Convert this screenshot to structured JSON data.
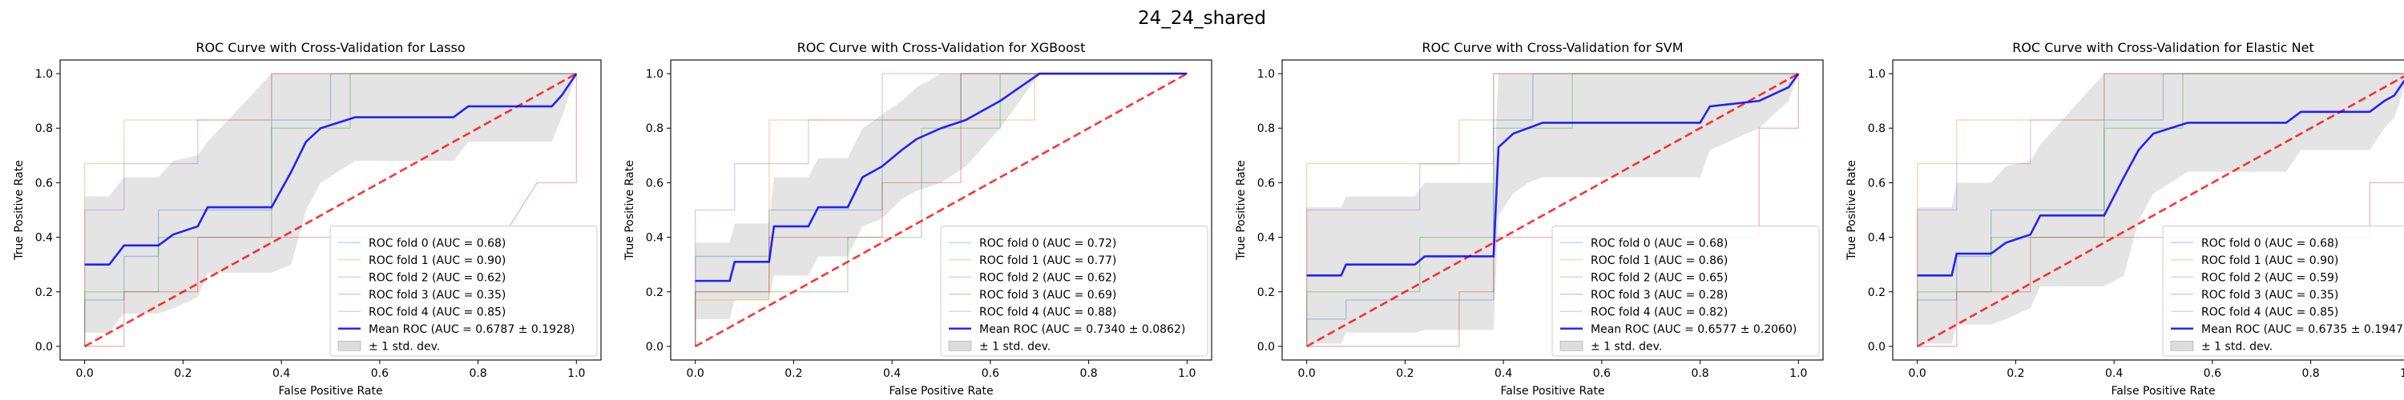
{
  "suptitle": "24_24_shared",
  "chart_data": [
    {
      "type": "line",
      "title": "ROC Curve with Cross-Validation for Lasso",
      "xlabel": "False Positive Rate",
      "ylabel": "True Positive Rate",
      "xlim": [
        -0.05,
        1.05
      ],
      "ylim": [
        -0.05,
        1.05
      ],
      "ticks": [
        "0.0",
        "0.2",
        "0.4",
        "0.6",
        "0.8",
        "1.0"
      ],
      "legend_position": "lower-right",
      "folds": [
        {
          "name": "ROC fold 0 (AUC = 0.68)",
          "color": "#1f77b4",
          "x": [
            0,
            0,
            0.08,
            0.08,
            0.15,
            0.15,
            0.31,
            0.31,
            0.38,
            0.38,
            0.5,
            0.5,
            1
          ],
          "y": [
            0,
            0.17,
            0.17,
            0.33,
            0.33,
            0.5,
            0.5,
            0.5,
            0.5,
            0.83,
            0.83,
            1,
            1
          ]
        },
        {
          "name": "ROC fold 1 (AUC = 0.90)",
          "color": "#ff7f0e",
          "x": [
            0,
            0,
            0.08,
            0.08,
            0.15,
            0.15,
            0.38,
            0.38,
            1
          ],
          "y": [
            0,
            0.67,
            0.67,
            0.83,
            0.83,
            0.83,
            0.83,
            1,
            1
          ]
        },
        {
          "name": "ROC fold 2 (AUC = 0.62)",
          "color": "#2ca02c",
          "x": [
            0,
            0,
            0.15,
            0.15,
            0.38,
            0.38,
            0.54,
            0.54,
            1
          ],
          "y": [
            0,
            0.2,
            0.2,
            0.4,
            0.4,
            0.8,
            0.8,
            1,
            1
          ]
        },
        {
          "name": "ROC fold 3 (AUC = 0.35)",
          "color": "#d62728",
          "x": [
            0,
            0.08,
            0.08,
            0.23,
            0.23,
            0.38,
            0.38,
            0.85,
            0.85,
            0.92,
            0.92,
            1,
            1
          ],
          "y": [
            0,
            0,
            0.2,
            0.2,
            0.4,
            0.4,
            0.4,
            0.4,
            0.4,
            0.6,
            0.6,
            0.6,
            1
          ]
        },
        {
          "name": "ROC fold 4 (AUC = 0.85)",
          "color": "#9467bd",
          "x": [
            0,
            0,
            0.08,
            0.08,
            0.23,
            0.23,
            0.38,
            0.38,
            1
          ],
          "y": [
            0,
            0.5,
            0.5,
            0.67,
            0.67,
            0.83,
            0.83,
            1,
            1
          ]
        }
      ],
      "mean": {
        "name": "Mean ROC (AUC = 0.6787 ± 0.1928)",
        "color": "#0000ff",
        "x": [
          0,
          0.05,
          0.08,
          0.15,
          0.18,
          0.23,
          0.25,
          0.38,
          0.42,
          0.45,
          0.48,
          0.55,
          0.75,
          0.78,
          0.95,
          0.97,
          1.0
        ],
        "y": [
          0.3,
          0.3,
          0.37,
          0.37,
          0.41,
          0.44,
          0.51,
          0.51,
          0.64,
          0.75,
          0.8,
          0.84,
          0.84,
          0.88,
          0.88,
          0.92,
          1.0
        ]
      },
      "std_band": {
        "name": "± 1 std. dev.",
        "color": "#bbbbbb",
        "x": [
          0,
          0.05,
          0.08,
          0.15,
          0.18,
          0.23,
          0.25,
          0.38,
          0.42,
          0.45,
          0.48,
          0.55,
          0.75,
          0.78,
          0.95,
          0.97,
          1.0
        ],
        "upper": [
          0.55,
          0.55,
          0.62,
          0.62,
          0.68,
          0.7,
          0.75,
          1.0,
          1.0,
          1.0,
          1.0,
          1.0,
          1.0,
          1.0,
          1.0,
          1.0,
          1.0
        ],
        "lower": [
          0.05,
          0.05,
          0.12,
          0.12,
          0.14,
          0.18,
          0.27,
          0.27,
          0.3,
          0.5,
          0.6,
          0.68,
          0.68,
          0.75,
          0.75,
          0.84,
          1.0
        ]
      },
      "chance": {
        "color": "#ff0000"
      }
    },
    {
      "type": "line",
      "title": "ROC Curve with Cross-Validation for XGBoost",
      "xlabel": "False Positive Rate",
      "ylabel": "True Positive Rate",
      "xlim": [
        -0.05,
        1.05
      ],
      "ylim": [
        -0.05,
        1.05
      ],
      "ticks": [
        "0.0",
        "0.2",
        "0.4",
        "0.6",
        "0.8",
        "1.0"
      ],
      "legend_position": "lower-right",
      "folds": [
        {
          "name": "ROC fold 0 (AUC = 0.72)",
          "color": "#1f77b4",
          "x": [
            0,
            0,
            0.15,
            0.15,
            0.38,
            0.38,
            0.54,
            0.54,
            1
          ],
          "y": [
            0,
            0.33,
            0.33,
            0.5,
            0.5,
            0.83,
            0.83,
            1,
            1
          ]
        },
        {
          "name": "ROC fold 1 (AUC = 0.77)",
          "color": "#ff7f0e",
          "x": [
            0,
            0,
            0.15,
            0.15,
            0.38,
            0.38,
            0.69,
            0.69,
            1
          ],
          "y": [
            0,
            0.17,
            0.17,
            0.83,
            0.83,
            0.83,
            0.83,
            1,
            1
          ]
        },
        {
          "name": "ROC fold 2 (AUC = 0.62)",
          "color": "#2ca02c",
          "x": [
            0,
            0,
            0.31,
            0.31,
            0.46,
            0.46,
            0.62,
            0.62,
            1
          ],
          "y": [
            0,
            0.2,
            0.2,
            0.4,
            0.4,
            0.8,
            0.8,
            1,
            1
          ]
        },
        {
          "name": "ROC fold 3 (AUC = 0.69)",
          "color": "#d62728",
          "x": [
            0,
            0,
            0.15,
            0.15,
            0.38,
            0.38,
            0.54,
            0.54,
            1
          ],
          "y": [
            0,
            0.2,
            0.2,
            0.4,
            0.4,
            0.6,
            0.6,
            1,
            1
          ]
        },
        {
          "name": "ROC fold 4 (AUC = 0.88)",
          "color": "#9467bd",
          "x": [
            0,
            0,
            0.08,
            0.08,
            0.23,
            0.23,
            0.38,
            0.38,
            1
          ],
          "y": [
            0,
            0.5,
            0.5,
            0.67,
            0.67,
            0.83,
            0.83,
            1,
            1
          ]
        }
      ],
      "mean": {
        "name": "Mean ROC (AUC = 0.7340 ± 0.0862)",
        "color": "#0000ff",
        "x": [
          0,
          0.07,
          0.08,
          0.15,
          0.16,
          0.23,
          0.25,
          0.31,
          0.34,
          0.38,
          0.42,
          0.45,
          0.5,
          0.55,
          0.62,
          0.7,
          1.0
        ],
        "y": [
          0.24,
          0.24,
          0.31,
          0.31,
          0.44,
          0.44,
          0.51,
          0.51,
          0.62,
          0.66,
          0.72,
          0.76,
          0.8,
          0.83,
          0.9,
          1.0,
          1.0
        ]
      },
      "std_band": {
        "name": "± 1 std. dev.",
        "color": "#bbbbbb",
        "x": [
          0,
          0.07,
          0.08,
          0.15,
          0.16,
          0.23,
          0.25,
          0.31,
          0.34,
          0.38,
          0.42,
          0.45,
          0.5,
          0.55,
          0.62,
          0.7,
          1.0
        ],
        "upper": [
          0.38,
          0.38,
          0.45,
          0.45,
          0.62,
          0.62,
          0.69,
          0.69,
          0.8,
          0.85,
          0.9,
          0.95,
          1.0,
          1.0,
          1.0,
          1.0,
          1.0
        ],
        "lower": [
          0.1,
          0.1,
          0.17,
          0.17,
          0.26,
          0.26,
          0.33,
          0.33,
          0.44,
          0.47,
          0.54,
          0.57,
          0.6,
          0.66,
          0.8,
          1.0,
          1.0
        ]
      },
      "chance": {
        "color": "#ff0000"
      }
    },
    {
      "type": "line",
      "title": "ROC Curve with Cross-Validation for SVM",
      "xlabel": "False Positive Rate",
      "ylabel": "True Positive Rate",
      "xlim": [
        -0.05,
        1.05
      ],
      "ylim": [
        -0.05,
        1.05
      ],
      "ticks": [
        "0.0",
        "0.2",
        "0.4",
        "0.6",
        "0.8",
        "1.0"
      ],
      "legend_position": "lower-right",
      "folds": [
        {
          "name": "ROC fold 0 (AUC = 0.68)",
          "color": "#1f77b4",
          "x": [
            0,
            0,
            0.08,
            0.08,
            0.38,
            0.38,
            0.46,
            0.46,
            1
          ],
          "y": [
            0,
            0.1,
            0.1,
            0.17,
            0.17,
            0.83,
            0.83,
            1,
            1
          ]
        },
        {
          "name": "ROC fold 1 (AUC = 0.86)",
          "color": "#ff7f0e",
          "x": [
            0,
            0,
            0.31,
            0.31,
            0.38,
            0.38,
            1
          ],
          "y": [
            0,
            0.67,
            0.67,
            0.83,
            0.83,
            1,
            1
          ]
        },
        {
          "name": "ROC fold 2 (AUC = 0.65)",
          "color": "#2ca02c",
          "x": [
            0,
            0,
            0.23,
            0.23,
            0.38,
            0.38,
            0.54,
            0.54,
            1
          ],
          "y": [
            0,
            0.2,
            0.2,
            0.4,
            0.4,
            0.8,
            0.8,
            1,
            1
          ]
        },
        {
          "name": "ROC fold 3 (AUC = 0.28)",
          "color": "#d62728",
          "x": [
            0,
            0.31,
            0.31,
            0.38,
            0.38,
            0.92,
            0.92,
            1,
            1
          ],
          "y": [
            0,
            0,
            0.2,
            0.2,
            0.4,
            0.4,
            0.8,
            0.8,
            1
          ]
        },
        {
          "name": "ROC fold 4 (AUC = 0.82)",
          "color": "#9467bd",
          "x": [
            0,
            0,
            0.23,
            0.23,
            0.38,
            0.38,
            1
          ],
          "y": [
            0,
            0.5,
            0.5,
            0.67,
            0.67,
            1,
            1
          ]
        }
      ],
      "mean": {
        "name": "Mean ROC (AUC = 0.6577 ± 0.2060)",
        "color": "#0000ff",
        "x": [
          0,
          0.07,
          0.08,
          0.22,
          0.24,
          0.38,
          0.39,
          0.42,
          0.45,
          0.48,
          0.8,
          0.82,
          0.92,
          0.98,
          1.0
        ],
        "y": [
          0.26,
          0.26,
          0.3,
          0.3,
          0.33,
          0.33,
          0.73,
          0.78,
          0.8,
          0.82,
          0.82,
          0.88,
          0.9,
          0.95,
          1.0
        ]
      },
      "std_band": {
        "name": "± 1 std. dev.",
        "color": "#bbbbbb",
        "x": [
          0,
          0.07,
          0.08,
          0.22,
          0.24,
          0.38,
          0.39,
          0.42,
          0.45,
          0.48,
          0.8,
          0.82,
          0.92,
          0.98,
          1.0
        ],
        "upper": [
          0.51,
          0.51,
          0.55,
          0.55,
          0.6,
          0.6,
          1.0,
          1.0,
          1.0,
          1.0,
          1.0,
          1.0,
          1.0,
          1.0,
          1.0
        ],
        "lower": [
          0.01,
          0.01,
          0.05,
          0.05,
          0.06,
          0.06,
          0.48,
          0.56,
          0.6,
          0.62,
          0.62,
          0.72,
          0.8,
          0.9,
          1.0
        ]
      },
      "chance": {
        "color": "#ff0000"
      }
    },
    {
      "type": "line",
      "title": "ROC Curve with Cross-Validation for Elastic Net",
      "xlabel": "False Positive Rate",
      "ylabel": "True Positive Rate",
      "xlim": [
        -0.05,
        1.05
      ],
      "ylim": [
        -0.05,
        1.05
      ],
      "ticks": [
        "0.0",
        "0.2",
        "0.4",
        "0.6",
        "0.8",
        "1.0"
      ],
      "legend_position": "lower-right",
      "folds": [
        {
          "name": "ROC fold 0 (AUC = 0.68)",
          "color": "#1f77b4",
          "x": [
            0,
            0,
            0.08,
            0.08,
            0.15,
            0.15,
            0.31,
            0.31,
            0.38,
            0.38,
            0.5,
            0.5,
            1
          ],
          "y": [
            0,
            0.17,
            0.17,
            0.33,
            0.33,
            0.5,
            0.5,
            0.5,
            0.5,
            0.83,
            0.83,
            1,
            1
          ]
        },
        {
          "name": "ROC fold 1 (AUC = 0.90)",
          "color": "#ff7f0e",
          "x": [
            0,
            0,
            0.08,
            0.08,
            0.15,
            0.15,
            0.38,
            0.38,
            1
          ],
          "y": [
            0,
            0.67,
            0.67,
            0.83,
            0.83,
            0.83,
            0.83,
            1,
            1
          ]
        },
        {
          "name": "ROC fold 2 (AUC = 0.59)",
          "color": "#2ca02c",
          "x": [
            0,
            0,
            0.15,
            0.15,
            0.38,
            0.38,
            0.54,
            0.54,
            1
          ],
          "y": [
            0,
            0.2,
            0.2,
            0.4,
            0.4,
            0.8,
            0.8,
            1,
            1
          ]
        },
        {
          "name": "ROC fold 3 (AUC = 0.35)",
          "color": "#d62728",
          "x": [
            0,
            0.08,
            0.08,
            0.23,
            0.23,
            0.38,
            0.38,
            0.92,
            0.92,
            1,
            1
          ],
          "y": [
            0,
            0,
            0.2,
            0.2,
            0.4,
            0.4,
            0.4,
            0.4,
            0.6,
            0.6,
            1
          ]
        },
        {
          "name": "ROC fold 4 (AUC = 0.85)",
          "color": "#9467bd",
          "x": [
            0,
            0,
            0.08,
            0.08,
            0.23,
            0.23,
            0.38,
            0.38,
            1
          ],
          "y": [
            0,
            0.5,
            0.5,
            0.67,
            0.67,
            0.83,
            0.83,
            1,
            1
          ]
        }
      ],
      "mean": {
        "name": "Mean ROC (AUC = 0.6735 ± 0.1947)",
        "color": "#0000ff",
        "x": [
          0,
          0.07,
          0.08,
          0.15,
          0.18,
          0.23,
          0.25,
          0.38,
          0.42,
          0.45,
          0.48,
          0.55,
          0.75,
          0.78,
          0.92,
          0.95,
          0.97,
          1.0
        ],
        "y": [
          0.26,
          0.26,
          0.34,
          0.34,
          0.38,
          0.41,
          0.48,
          0.48,
          0.62,
          0.72,
          0.78,
          0.82,
          0.82,
          0.86,
          0.86,
          0.9,
          0.92,
          1.0
        ]
      },
      "std_band": {
        "name": "± 1 std. dev.",
        "color": "#bbbbbb",
        "x": [
          0,
          0.07,
          0.08,
          0.15,
          0.18,
          0.23,
          0.25,
          0.38,
          0.42,
          0.45,
          0.48,
          0.55,
          0.75,
          0.78,
          0.92,
          0.95,
          0.97,
          1.0
        ],
        "upper": [
          0.51,
          0.51,
          0.6,
          0.6,
          0.66,
          0.68,
          0.74,
          1.0,
          1.0,
          1.0,
          1.0,
          1.0,
          1.0,
          1.0,
          1.0,
          1.0,
          1.0,
          1.0
        ],
        "lower": [
          0.01,
          0.01,
          0.08,
          0.08,
          0.1,
          0.14,
          0.22,
          0.22,
          0.26,
          0.46,
          0.56,
          0.64,
          0.64,
          0.72,
          0.72,
          0.8,
          0.84,
          1.0
        ]
      },
      "chance": {
        "color": "#ff0000"
      }
    }
  ]
}
